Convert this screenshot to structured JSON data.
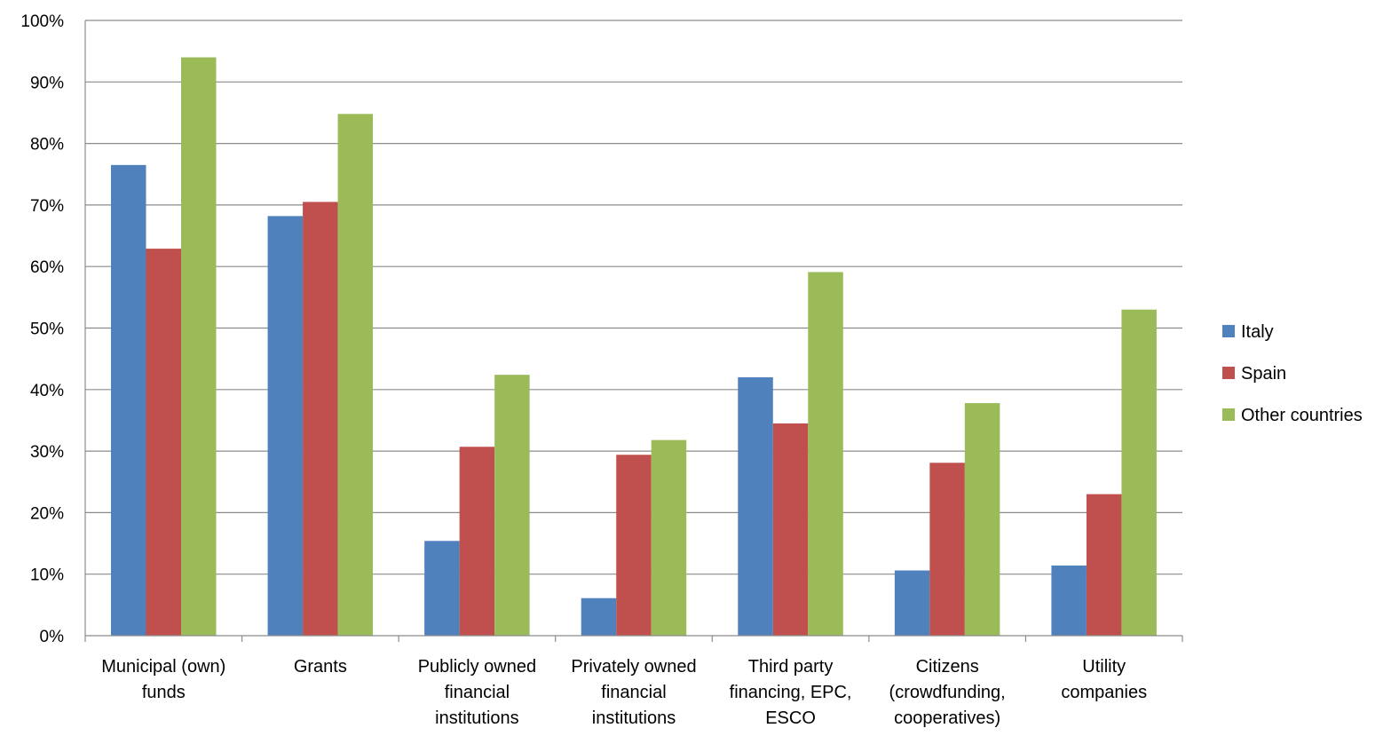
{
  "chart_data": {
    "type": "bar",
    "title": "",
    "xlabel": "",
    "ylabel": "",
    "ylim": [
      0,
      100
    ],
    "y_tick_step": 10,
    "y_tick_format": "percent",
    "grid": true,
    "legend_position": "right",
    "categories": [
      [
        "Municipal (own)",
        "funds"
      ],
      [
        "Grants"
      ],
      [
        "Publicly owned",
        "financial",
        "institutions"
      ],
      [
        "Privately owned",
        "financial",
        "institutions"
      ],
      [
        "Third party",
        "financing, EPC,",
        "ESCO"
      ],
      [
        "Citizens",
        "(crowdfunding,",
        "cooperatives)"
      ],
      [
        "Utility",
        "companies"
      ]
    ],
    "series": [
      {
        "name": "Italy",
        "color": "#4F81BD",
        "values": [
          76.5,
          68.2,
          15.4,
          6.1,
          42.0,
          10.6,
          11.4
        ]
      },
      {
        "name": "Spain",
        "color": "#C0504D",
        "values": [
          62.9,
          70.5,
          30.7,
          29.4,
          34.5,
          28.1,
          23.0
        ]
      },
      {
        "name": "Other countries",
        "color": "#9BBB59",
        "values": [
          94.0,
          84.8,
          42.4,
          31.8,
          59.1,
          37.8,
          53.0
        ]
      }
    ]
  }
}
